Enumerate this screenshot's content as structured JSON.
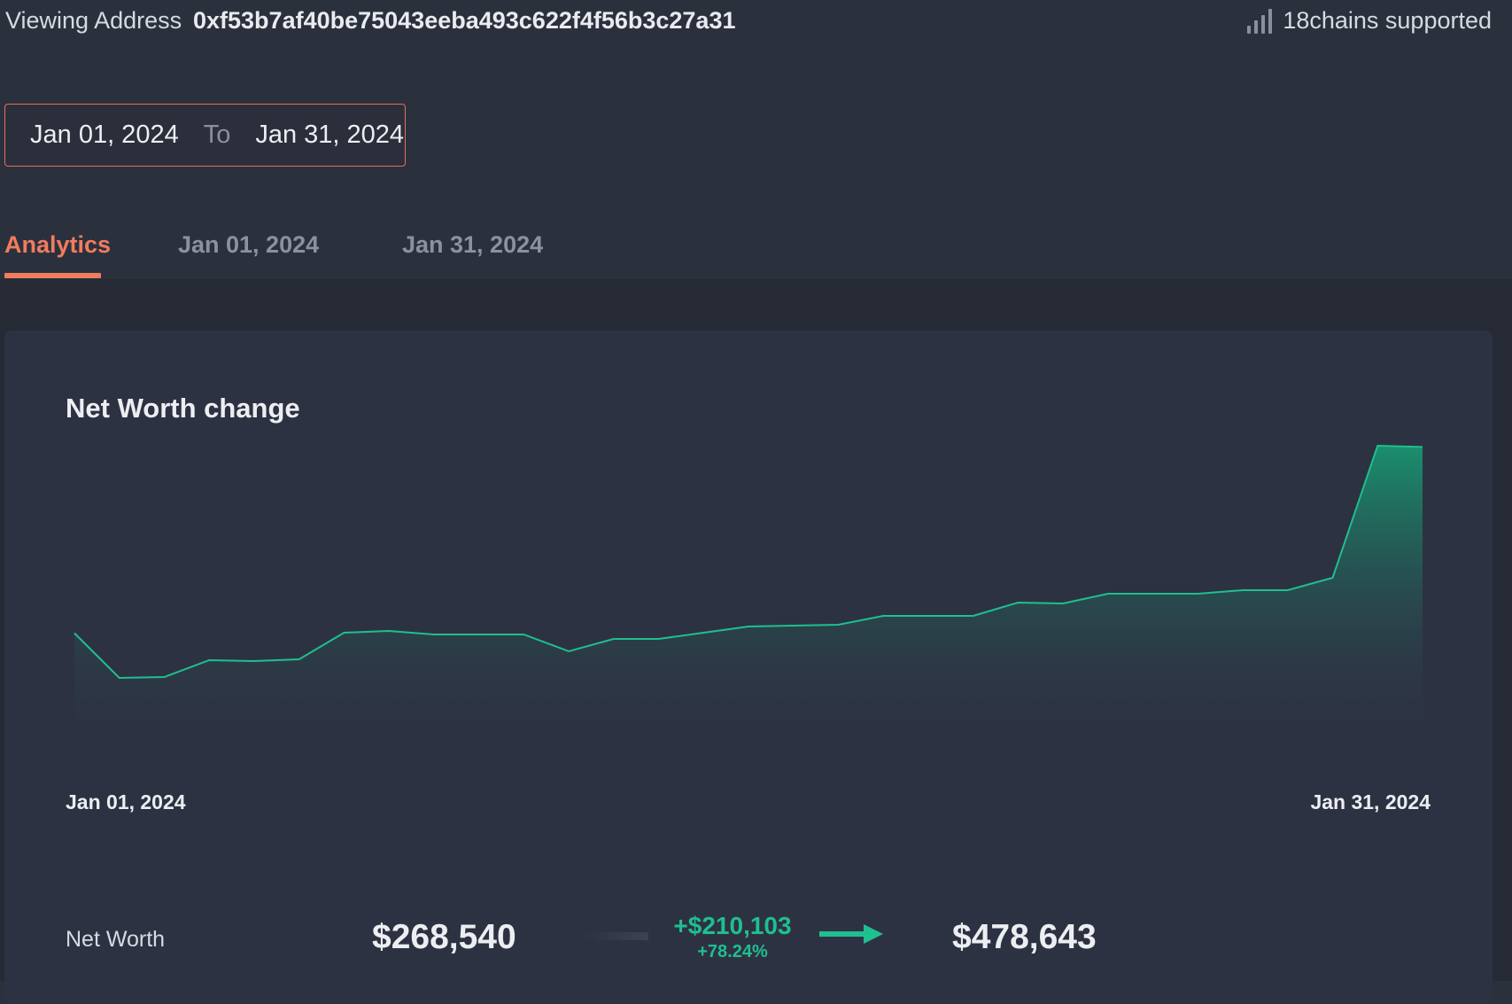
{
  "header": {
    "viewing_label": "Viewing Address",
    "address": "0xf53b7af40be75043eeba493c622f4f56b3c27a31",
    "chains_icon": "signal-bars-icon",
    "chains_text": "18chains supported"
  },
  "date_range": {
    "start": "Jan 01, 2024",
    "separator": "To",
    "end": "Jan 31, 2024"
  },
  "tabs": [
    {
      "label": "Analytics",
      "active": true
    },
    {
      "label": "Jan 01, 2024",
      "active": false
    },
    {
      "label": "Jan 31, 2024",
      "active": false
    }
  ],
  "card": {
    "title": "Net Worth change",
    "x_start_label": "Jan 01, 2024",
    "x_end_label": "Jan 31, 2024"
  },
  "net_worth": {
    "label": "Net Worth",
    "start_value": "$268,540",
    "change_amount": "+$210,103",
    "change_percent": "+78.24%",
    "arrow_icon": "arrow-right-icon",
    "end_value": "$478,643"
  },
  "colors": {
    "accent": "#f07c5e",
    "positive": "#1fbf8f",
    "background": "#2b303d",
    "card": "#2d3242"
  },
  "chart_data": {
    "type": "area",
    "title": "Net Worth change",
    "x": [
      "Jan 01",
      "Jan 02",
      "Jan 03",
      "Jan 04",
      "Jan 05",
      "Jan 06",
      "Jan 07",
      "Jan 08",
      "Jan 09",
      "Jan 10",
      "Jan 11",
      "Jan 12",
      "Jan 13",
      "Jan 14",
      "Jan 15",
      "Jan 16",
      "Jan 17",
      "Jan 18",
      "Jan 19",
      "Jan 20",
      "Jan 21",
      "Jan 22",
      "Jan 23",
      "Jan 24",
      "Jan 25",
      "Jan 26",
      "Jan 27",
      "Jan 28",
      "Jan 29",
      "Jan 30",
      "Jan 31"
    ],
    "y": [
      268540,
      218000,
      219000,
      238000,
      237000,
      239000,
      269000,
      271000,
      267000,
      267000,
      267000,
      248000,
      262000,
      262000,
      269000,
      276000,
      277000,
      278000,
      288000,
      288000,
      288000,
      303000,
      302000,
      313000,
      313000,
      313000,
      317000,
      317000,
      331000,
      480000,
      478643
    ],
    "x_tick_labels": [
      "Jan 01, 2024",
      "Jan 31, 2024"
    ],
    "ylim": [
      160000,
      500000
    ],
    "grid": false,
    "legend": "none"
  }
}
